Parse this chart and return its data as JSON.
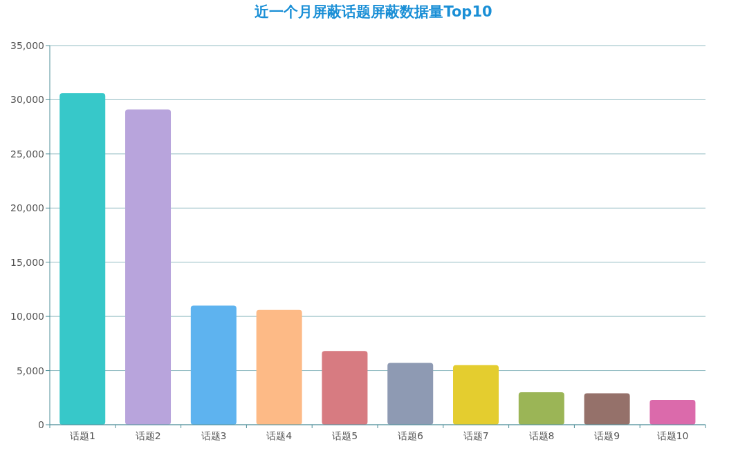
{
  "chart_data": {
    "type": "bar",
    "title": "近一个月屏蔽话题屏蔽数据量Top10",
    "categories": [
      "话题1",
      "话题2",
      "话题3",
      "话题4",
      "话题5",
      "话题6",
      "话题7",
      "话题8",
      "话题9",
      "话题10"
    ],
    "values": [
      30600,
      29100,
      11000,
      10600,
      6800,
      5700,
      5500,
      3000,
      2900,
      2300
    ],
    "colors": [
      "#37c8c9",
      "#b8a4dc",
      "#5eb3ef",
      "#fdba86",
      "#d77b81",
      "#8e9ab3",
      "#e4cd2f",
      "#9bb556",
      "#95716a",
      "#db6aab"
    ],
    "ylim": [
      0,
      35000
    ],
    "yticks": [
      0,
      {
        "value": 5000,
        "label": "5,000"
      },
      {
        "value": 10000,
        "label": "10,000"
      },
      {
        "value": 15000,
        "label": "15,000"
      },
      {
        "value": 20000,
        "label": "20,000"
      },
      {
        "value": 25000,
        "label": "25,000"
      },
      {
        "value": 30000,
        "label": "30,000"
      },
      {
        "value": 35000,
        "label": "35,000"
      }
    ],
    "grid": "y"
  }
}
